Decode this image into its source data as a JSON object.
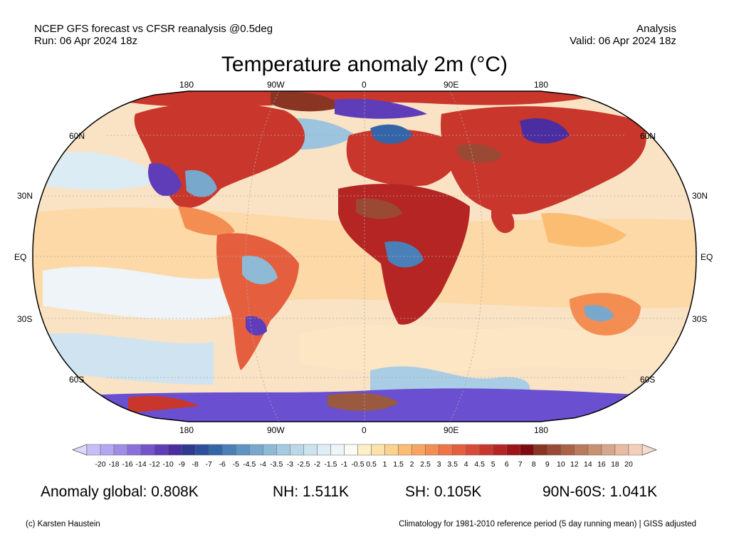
{
  "header": {
    "left_line1": "NCEP GFS forecast vs CFSR reanalysis @0.5deg",
    "left_line2": "Run: 06 Apr 2024 18z",
    "right_line1": "Analysis",
    "right_line2": "Valid: 06 Apr 2024 18z"
  },
  "title": "Temperature anomaly 2m (°C)",
  "lon_labels_top": [
    "180",
    "90W",
    "0",
    "90E",
    "180"
  ],
  "lon_labels_bottom": [
    "180",
    "90W",
    "0",
    "90E",
    "180"
  ],
  "lat_labels_left": [
    "60N",
    "30N",
    "EQ",
    "30S",
    "60S"
  ],
  "lat_labels_right": [
    "60N",
    "30N",
    "EQ",
    "30S",
    "60S"
  ],
  "colorbar": {
    "ticks": [
      "-20",
      "-18",
      "-16",
      "-14",
      "-12",
      "-10",
      "-9",
      "-8",
      "-7",
      "-6",
      "-5",
      "-4.5",
      "-4",
      "-3.5",
      "-3",
      "-2.5",
      "-2",
      "-1.5",
      "-1",
      "-0.5",
      "0.5",
      "1",
      "1.5",
      "2",
      "2.5",
      "3",
      "3.5",
      "4",
      "4.5",
      "5",
      "6",
      "7",
      "8",
      "9",
      "10",
      "12",
      "14",
      "16",
      "18",
      "20"
    ],
    "colors": [
      "#c6bff7",
      "#b4a7f1",
      "#a08de8",
      "#8a70dc",
      "#7453cc",
      "#5f3db8",
      "#4a2da0",
      "#2f3a8f",
      "#2f4f9e",
      "#3565a9",
      "#4a7fb8",
      "#5f93c2",
      "#78a8cc",
      "#8ebad6",
      "#a5cbdf",
      "#bad8e8",
      "#cde4ef",
      "#dfeef6",
      "#eef5fa",
      "#fbfbf6",
      "#fdf0c8",
      "#fde3a8",
      "#fcd28c",
      "#fbbd72",
      "#f8a65f",
      "#f48d52",
      "#ee7548",
      "#e55f3f",
      "#da4a36",
      "#c9362c",
      "#b52523",
      "#9e141b",
      "#7f0a10",
      "#8a3424",
      "#9a4a34",
      "#aa6246",
      "#ba7a5c",
      "#c99072",
      "#d8a68a",
      "#e7bca2",
      "#f2cfba"
    ]
  },
  "stats": {
    "global": "Anomaly global: 0.808K",
    "nh": "NH: 1.511K",
    "sh": "SH: 0.105K",
    "arctic": "90N-60S: 1.041K"
  },
  "footer": {
    "credit": "(c) Karsten Haustein",
    "note": "Climatology for 1981-2010 reference period (5 day running mean) | GISS adjusted"
  }
}
